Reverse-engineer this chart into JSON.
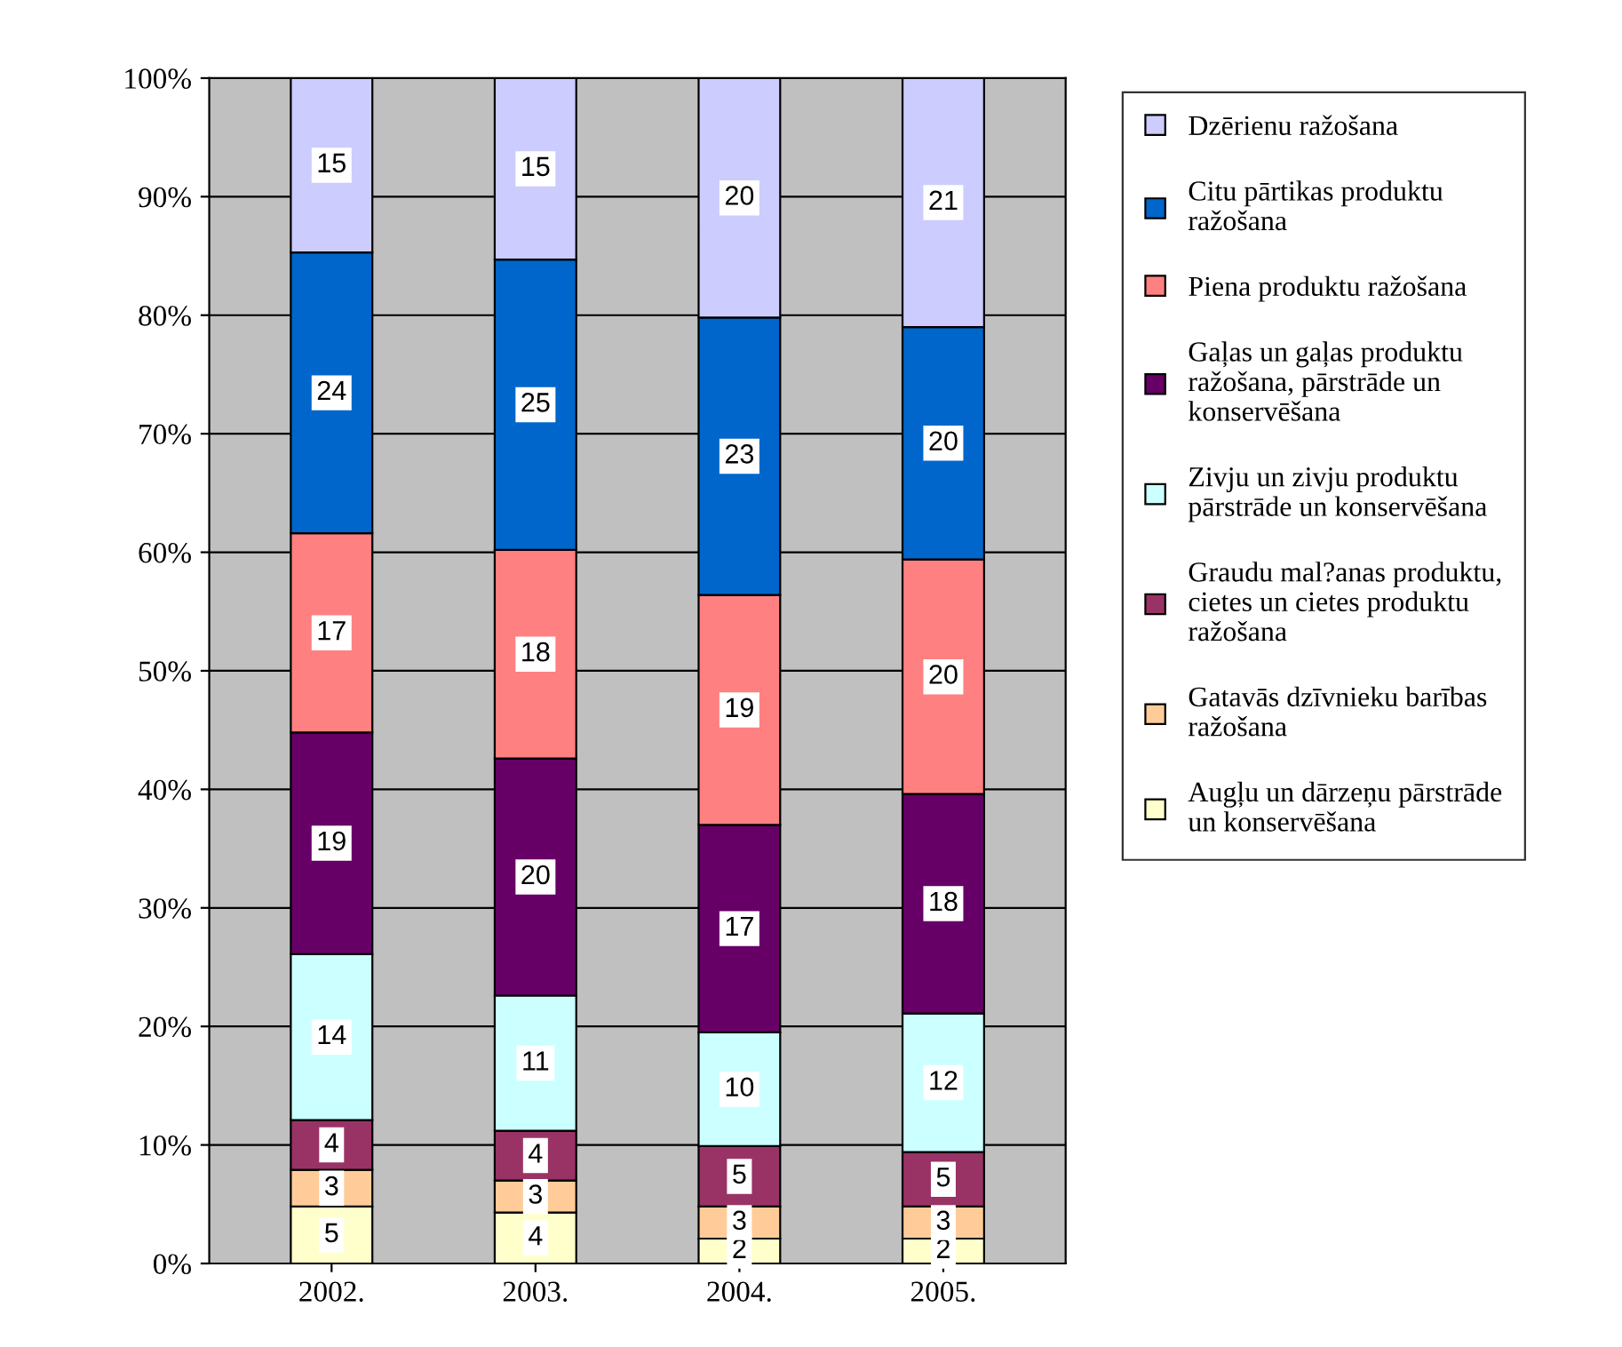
{
  "chart_data": {
    "type": "bar",
    "stacked": true,
    "categories": [
      "2002.",
      "2003.",
      "2004.",
      "2005."
    ],
    "ylim": [
      0,
      100
    ],
    "yticks": [
      {
        "value": 0,
        "label": "0%"
      },
      {
        "value": 10,
        "label": "10%"
      },
      {
        "value": 20,
        "label": "20%"
      },
      {
        "value": 30,
        "label": "30%"
      },
      {
        "value": 40,
        "label": "40%"
      },
      {
        "value": 50,
        "label": "50%"
      },
      {
        "value": 60,
        "label": "60%"
      },
      {
        "value": 70,
        "label": "70%"
      },
      {
        "value": 80,
        "label": "80%"
      },
      {
        "value": 90,
        "label": "90%"
      },
      {
        "value": 100,
        "label": "100%"
      }
    ],
    "grid": "y",
    "legend": "right",
    "series": [
      {
        "name": "Augļu un dārzeņu pārstrāde\nun konservēšana",
        "color": "#ffffcc",
        "values": [
          4.8,
          4.3,
          2.1,
          2.1
        ],
        "value_labels": [
          "5",
          "4",
          "2",
          "2"
        ]
      },
      {
        "name": "Gatavās dzīvnieku barības\nražošana",
        "color": "#ffcc99",
        "values": [
          3.1,
          2.7,
          2.7,
          2.7
        ],
        "value_labels": [
          "3",
          "3",
          "3",
          "3"
        ]
      },
      {
        "name": "Graudu mal?anas produktu,\ncietes un cietes produktu\nražošana",
        "color": "#993366",
        "values": [
          4.2,
          4.2,
          5.1,
          4.6
        ],
        "value_labels": [
          "4",
          "4",
          "5",
          "5"
        ]
      },
      {
        "name": "Zivju un zivju produktu\npārstrāde un konservēšana",
        "color": "#ccffff",
        "values": [
          14.0,
          11.4,
          9.6,
          11.7
        ],
        "value_labels": [
          "14",
          "11",
          "10",
          "12"
        ]
      },
      {
        "name": "Gaļas un gaļas produktu\nražošana, pārstrāde un\nkonservēšana",
        "color": "#660066",
        "values": [
          18.7,
          20.0,
          17.5,
          18.5
        ],
        "value_labels": [
          "19",
          "20",
          "17",
          "18"
        ]
      },
      {
        "name": "Piena produktu ražošana",
        "color": "#ff8080",
        "values": [
          16.8,
          17.6,
          19.4,
          19.8
        ],
        "value_labels": [
          "17",
          "18",
          "19",
          "20"
        ]
      },
      {
        "name": "Citu pārtikas produktu\nražošana",
        "color": "#0066cc",
        "values": [
          23.7,
          24.5,
          23.4,
          19.6
        ],
        "value_labels": [
          "24",
          "25",
          "23",
          "20"
        ]
      },
      {
        "name": "Dzērienu ražošana",
        "color": "#ccccff",
        "values": [
          14.7,
          15.3,
          20.2,
          21.0
        ],
        "value_labels": [
          "15",
          "15",
          "20",
          "21"
        ]
      }
    ]
  }
}
